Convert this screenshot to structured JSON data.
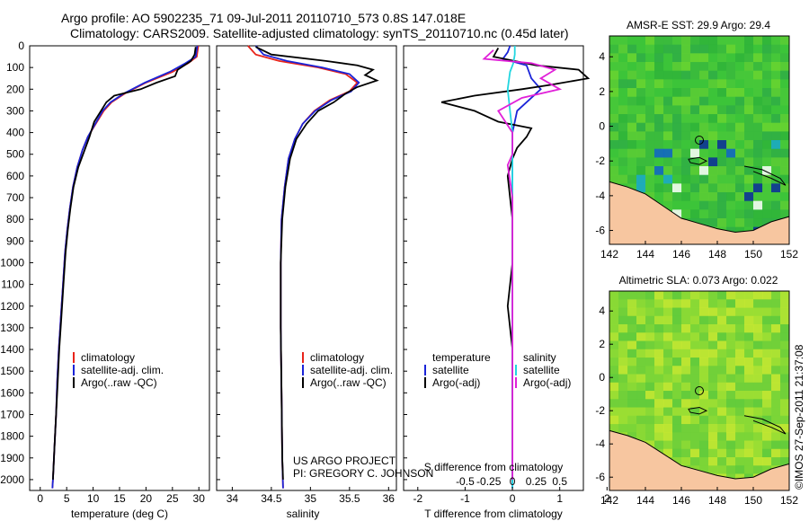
{
  "header": {
    "line1": "Argo profile: AO 5902235_71 09-Jul-2011 20110710_573 0.8S 147.018E",
    "line2": "Climatology: CARS2009. Satellite-adjusted climatology: synTS_20110710.nc (0.45d later)"
  },
  "y_ticks": [
    0,
    100,
    200,
    300,
    400,
    500,
    600,
    700,
    800,
    900,
    1000,
    1100,
    1200,
    1300,
    1400,
    1500,
    1600,
    1700,
    1800,
    1900,
    2000
  ],
  "colors": {
    "climatology": "#e8231a",
    "satellite": "#1a24d8",
    "argo": "#000000",
    "salinity_sat": "#22d6e0",
    "salinity_argo": "#e020d8"
  },
  "chart_data": [
    {
      "type": "line",
      "xlabel": "temperature (deg C)",
      "xlim": [
        -2,
        32
      ],
      "x_ticks": [
        0,
        5,
        10,
        15,
        20,
        25,
        30
      ],
      "ylim": [
        2050,
        0
      ],
      "legend": {
        "placement": "center-left",
        "items": [
          {
            "name": "climatology",
            "color": "#e8231a"
          },
          {
            "name": "satellite-adj. clim.",
            "color": "#1a24d8"
          },
          {
            "name": "Argo(..raw -QC)",
            "color": "#000000"
          }
        ]
      },
      "series": [
        {
          "name": "climatology",
          "color": "#e8231a",
          "points": [
            [
              29.9,
              0
            ],
            [
              29.6,
              50
            ],
            [
              28,
              80
            ],
            [
              25,
              120
            ],
            [
              20,
              170
            ],
            [
              16,
              220
            ],
            [
              13.5,
              260
            ],
            [
              12,
              300
            ],
            [
              10.5,
              360
            ],
            [
              9,
              420
            ],
            [
              8,
              480
            ],
            [
              7,
              560
            ],
            [
              6.2,
              650
            ],
            [
              5.6,
              750
            ],
            [
              5.1,
              850
            ],
            [
              4.7,
              950
            ],
            [
              4.3,
              1100
            ],
            [
              3.9,
              1250
            ],
            [
              3.5,
              1400
            ],
            [
              3.2,
              1550
            ],
            [
              3,
              1700
            ],
            [
              2.7,
              1850
            ],
            [
              2.4,
              2000
            ],
            [
              2.3,
              2040
            ]
          ]
        },
        {
          "name": "satellite-adj. clim.",
          "color": "#1a24d8",
          "points": [
            [
              29.7,
              0
            ],
            [
              29.4,
              50
            ],
            [
              27.5,
              80
            ],
            [
              24.5,
              120
            ],
            [
              19.8,
              170
            ],
            [
              15.8,
              220
            ],
            [
              13.3,
              260
            ],
            [
              11.8,
              300
            ],
            [
              10.4,
              360
            ],
            [
              9,
              420
            ],
            [
              8,
              480
            ],
            [
              7,
              560
            ],
            [
              6.2,
              650
            ],
            [
              5.6,
              750
            ],
            [
              5.1,
              850
            ],
            [
              4.7,
              950
            ],
            [
              4.3,
              1100
            ],
            [
              3.9,
              1250
            ],
            [
              3.5,
              1400
            ],
            [
              3.2,
              1550
            ],
            [
              3,
              1700
            ],
            [
              2.7,
              1850
            ],
            [
              2.4,
              2000
            ],
            [
              2.3,
              2040
            ]
          ]
        },
        {
          "name": "Argo(..raw -QC)",
          "color": "#000000",
          "points": [
            [
              29.4,
              5
            ],
            [
              29.2,
              40
            ],
            [
              28.5,
              70
            ],
            [
              26,
              110
            ],
            [
              25.5,
              140
            ],
            [
              22,
              170
            ],
            [
              19,
              200
            ],
            [
              14,
              230
            ],
            [
              12.5,
              260
            ],
            [
              11.5,
              300
            ],
            [
              10.2,
              350
            ],
            [
              9.3,
              420
            ],
            [
              8.4,
              480
            ],
            [
              7.2,
              560
            ],
            [
              6.3,
              650
            ],
            [
              5.7,
              750
            ],
            [
              5.2,
              850
            ],
            [
              4.8,
              950
            ],
            [
              4.4,
              1100
            ],
            [
              4,
              1250
            ],
            [
              3.6,
              1400
            ],
            [
              3.3,
              1550
            ],
            [
              3,
              1700
            ],
            [
              2.7,
              1850
            ],
            [
              2.4,
              2000
            ]
          ]
        }
      ]
    },
    {
      "type": "line",
      "xlabel": "salinity",
      "xlim": [
        33.8,
        36.1
      ],
      "x_ticks": [
        34,
        34.5,
        35,
        35.5,
        36
      ],
      "ylim": [
        2050,
        0
      ],
      "legend": {
        "placement": "center-left",
        "items": [
          {
            "name": "climatology",
            "color": "#e8231a"
          },
          {
            "name": "satellite-adj. clim.",
            "color": "#1a24d8"
          },
          {
            "name": "Argo(..raw -QC)",
            "color": "#000000"
          }
        ]
      },
      "annotation": [
        "US ARGO PROJECT",
        "PI: GREGORY C. JOHNSON"
      ],
      "series": [
        {
          "name": "climatology",
          "color": "#e8231a",
          "points": [
            [
              34.2,
              0
            ],
            [
              34.3,
              40
            ],
            [
              34.6,
              70
            ],
            [
              35.1,
              100
            ],
            [
              35.45,
              130
            ],
            [
              35.6,
              170
            ],
            [
              35.5,
              210
            ],
            [
              35.25,
              250
            ],
            [
              35.05,
              300
            ],
            [
              34.9,
              360
            ],
            [
              34.8,
              430
            ],
            [
              34.72,
              520
            ],
            [
              34.67,
              650
            ],
            [
              34.63,
              800
            ],
            [
              34.62,
              1000
            ],
            [
              34.62,
              1300
            ],
            [
              34.63,
              1600
            ],
            [
              34.64,
              1900
            ],
            [
              34.65,
              2040
            ]
          ]
        },
        {
          "name": "satellite-adj. clim.",
          "color": "#1a24d8",
          "points": [
            [
              34.3,
              0
            ],
            [
              34.4,
              40
            ],
            [
              34.7,
              70
            ],
            [
              35.15,
              100
            ],
            [
              35.5,
              130
            ],
            [
              35.62,
              170
            ],
            [
              35.52,
              210
            ],
            [
              35.27,
              250
            ],
            [
              35.06,
              300
            ],
            [
              34.9,
              360
            ],
            [
              34.8,
              430
            ],
            [
              34.72,
              520
            ],
            [
              34.67,
              650
            ],
            [
              34.63,
              800
            ],
            [
              34.62,
              1000
            ],
            [
              34.62,
              1300
            ],
            [
              34.63,
              1600
            ],
            [
              34.64,
              1900
            ],
            [
              34.65,
              2040
            ]
          ]
        },
        {
          "name": "Argo(..raw -QC)",
          "color": "#000000",
          "points": [
            [
              34.3,
              5
            ],
            [
              34.5,
              40
            ],
            [
              35.2,
              70
            ],
            [
              35.6,
              90
            ],
            [
              35.8,
              110
            ],
            [
              35.7,
              135
            ],
            [
              35.85,
              160
            ],
            [
              35.6,
              190
            ],
            [
              35.45,
              220
            ],
            [
              35.3,
              260
            ],
            [
              35.1,
              300
            ],
            [
              34.95,
              360
            ],
            [
              34.82,
              430
            ],
            [
              34.74,
              520
            ],
            [
              34.68,
              650
            ],
            [
              34.64,
              800
            ],
            [
              34.62,
              1000
            ],
            [
              34.62,
              1300
            ],
            [
              34.63,
              1600
            ],
            [
              34.64,
              1900
            ],
            [
              34.65,
              2000
            ]
          ]
        }
      ]
    },
    {
      "type": "line",
      "xlabel_top": "S difference from climatology",
      "xlabel": "T difference from climatology",
      "xlim": [
        -2.3,
        1.5
      ],
      "x_ticks_T": [
        -2,
        -1,
        0,
        1,
        2
      ],
      "x_ticks_S": [
        "-0.5",
        "-0.25",
        "0",
        "0.25",
        "0.5"
      ],
      "ylim": [
        2050,
        0
      ],
      "legend": {
        "placement": "center",
        "groups": [
          {
            "title": "temperature",
            "items": [
              {
                "name": "satellite",
                "color": "#1a24d8"
              },
              {
                "name": "Argo(-adj)",
                "color": "#000000"
              }
            ]
          },
          {
            "title": "salinity",
            "items": [
              {
                "name": "satellite",
                "color": "#22d6e0"
              },
              {
                "name": "Argo(-adj)",
                "color": "#e020d8"
              }
            ]
          }
        ]
      },
      "series": [
        {
          "name": "T satellite",
          "color": "#1a24d8",
          "points": [
            [
              -0.05,
              0
            ],
            [
              -0.1,
              30
            ],
            [
              -0.2,
              60
            ],
            [
              0.3,
              90
            ],
            [
              0.4,
              150
            ],
            [
              0.6,
              200
            ],
            [
              0.3,
              260
            ],
            [
              0.1,
              300
            ],
            [
              0,
              400
            ],
            [
              0,
              600
            ],
            [
              0,
              1000
            ],
            [
              0,
              1500
            ],
            [
              0,
              2040
            ]
          ]
        },
        {
          "name": "T Argo(-adj)",
          "color": "#000000",
          "points": [
            [
              -0.3,
              10
            ],
            [
              -0.4,
              50
            ],
            [
              0.5,
              90
            ],
            [
              1.4,
              110
            ],
            [
              1.6,
              150
            ],
            [
              0.8,
              180
            ],
            [
              0.2,
              200
            ],
            [
              -0.8,
              230
            ],
            [
              -1.5,
              260
            ],
            [
              -0.8,
              300
            ],
            [
              -0.3,
              350
            ],
            [
              0.4,
              380
            ],
            [
              0.3,
              420
            ],
            [
              0.1,
              470
            ],
            [
              0,
              520
            ],
            [
              -0.1,
              600
            ],
            [
              0,
              800
            ],
            [
              0,
              1000
            ],
            [
              -0.1,
              1200
            ],
            [
              0,
              1400
            ],
            [
              0,
              1700
            ],
            [
              0,
              2000
            ]
          ]
        },
        {
          "name": "S satellite",
          "color": "#22d6e0",
          "points": [
            [
              0.05,
              0
            ],
            [
              0.05,
              40
            ],
            [
              0.02,
              80
            ],
            [
              -0.05,
              120
            ],
            [
              -0.1,
              200
            ],
            [
              -0.05,
              300
            ],
            [
              0,
              400
            ],
            [
              0,
              800
            ],
            [
              0,
              1200
            ],
            [
              0,
              2040
            ]
          ]
        },
        {
          "name": "S Argo(-adj)",
          "color": "#e020d8",
          "points": [
            [
              -0.4,
              20
            ],
            [
              -0.6,
              60
            ],
            [
              0.4,
              80
            ],
            [
              0.9,
              110
            ],
            [
              0.6,
              150
            ],
            [
              1,
              200
            ],
            [
              0.2,
              240
            ],
            [
              -0.3,
              300
            ],
            [
              0,
              400
            ],
            [
              0,
              500
            ],
            [
              -0.1,
              550
            ],
            [
              0,
              700
            ],
            [
              0,
              1000
            ],
            [
              0,
              2000
            ]
          ]
        }
      ]
    },
    {
      "type": "heatmap",
      "title": "AMSR-E SST: 29.9 Argo: 29.4",
      "xlim": [
        142,
        152
      ],
      "ylim": [
        -6.8,
        5.2
      ],
      "x_ticks": [
        142,
        144,
        146,
        148,
        150,
        152
      ],
      "y_ticks": [
        -6,
        -4,
        -2,
        0,
        2,
        4
      ],
      "marker": {
        "x": 147.0,
        "y": -0.8
      }
    },
    {
      "type": "heatmap",
      "title": "Altimetric SLA: 0.073 Argo: 0.022",
      "xlim": [
        142,
        152
      ],
      "ylim": [
        -6.8,
        5.2
      ],
      "x_ticks": [
        142,
        144,
        146,
        148,
        150,
        152
      ],
      "y_ticks": [
        -6,
        -4,
        -2,
        0,
        2,
        4
      ],
      "marker": {
        "x": 147.0,
        "y": -0.8
      }
    }
  ],
  "credit": "©IMOS 27-Sep-2011 21:37:08"
}
